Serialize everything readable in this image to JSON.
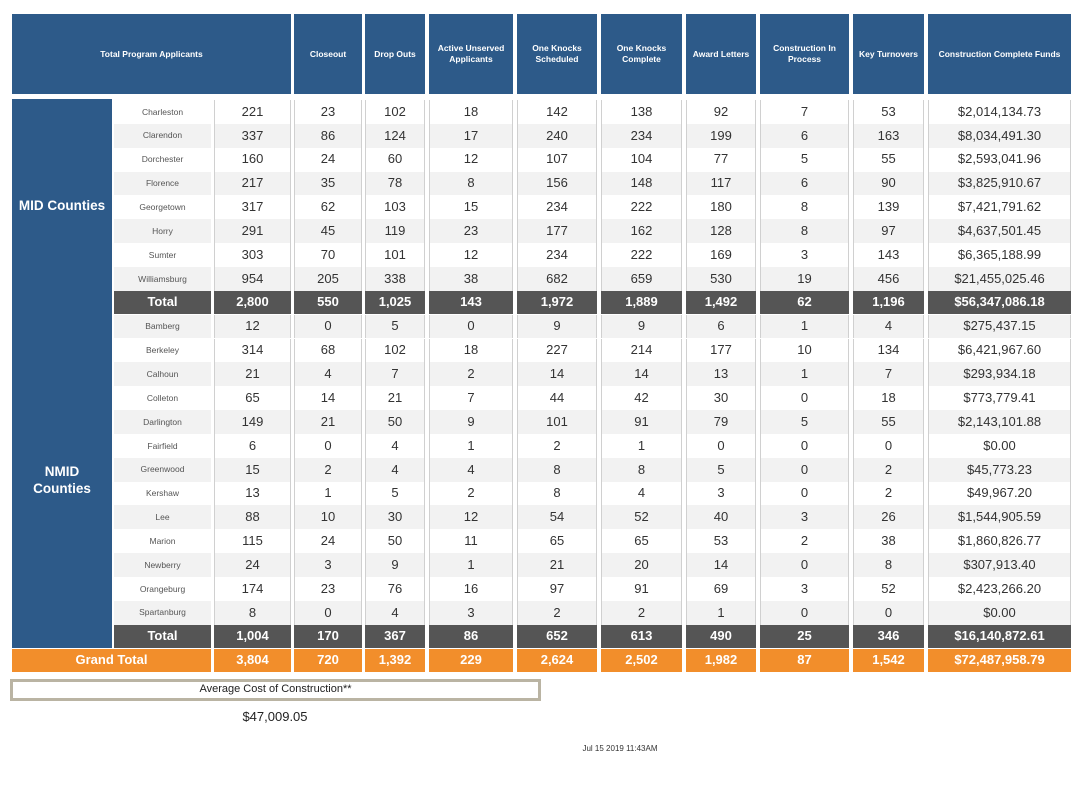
{
  "header": {
    "columns": [
      "Total Program Applicants",
      "Closeout",
      "Drop Outs",
      "Active Unserved Applicants",
      "One Knocks Scheduled",
      "One Knocks Complete",
      "Award Letters",
      "Construction In Process",
      "Key Turnovers",
      "Construction Complete Funds"
    ]
  },
  "groups": [
    {
      "label": "MID Counties",
      "rows": [
        {
          "county": "Charleston",
          "values": [
            "221",
            "23",
            "102",
            "18",
            "142",
            "138",
            "92",
            "7",
            "53",
            "$2,014,134.73"
          ]
        },
        {
          "county": "Clarendon",
          "values": [
            "337",
            "86",
            "124",
            "17",
            "240",
            "234",
            "199",
            "6",
            "163",
            "$8,034,491.30"
          ]
        },
        {
          "county": "Dorchester",
          "values": [
            "160",
            "24",
            "60",
            "12",
            "107",
            "104",
            "77",
            "5",
            "55",
            "$2,593,041.96"
          ]
        },
        {
          "county": "Florence",
          "values": [
            "217",
            "35",
            "78",
            "8",
            "156",
            "148",
            "117",
            "6",
            "90",
            "$3,825,910.67"
          ]
        },
        {
          "county": "Georgetown",
          "values": [
            "317",
            "62",
            "103",
            "15",
            "234",
            "222",
            "180",
            "8",
            "139",
            "$7,421,791.62"
          ]
        },
        {
          "county": "Horry",
          "values": [
            "291",
            "45",
            "119",
            "23",
            "177",
            "162",
            "128",
            "8",
            "97",
            "$4,637,501.45"
          ]
        },
        {
          "county": "Sumter",
          "values": [
            "303",
            "70",
            "101",
            "12",
            "234",
            "222",
            "169",
            "3",
            "143",
            "$6,365,188.99"
          ]
        },
        {
          "county": "Williamsburg",
          "values": [
            "954",
            "205",
            "338",
            "38",
            "682",
            "659",
            "530",
            "19",
            "456",
            "$21,455,025.46"
          ]
        }
      ],
      "total": {
        "label": "Total",
        "values": [
          "2,800",
          "550",
          "1,025",
          "143",
          "1,972",
          "1,889",
          "1,492",
          "62",
          "1,196",
          "$56,347,086.18"
        ]
      }
    },
    {
      "label": "NMID Counties",
      "rows": [
        {
          "county": "Bamberg",
          "values": [
            "12",
            "0",
            "5",
            "0",
            "9",
            "9",
            "6",
            "1",
            "4",
            "$275,437.15"
          ]
        },
        {
          "county": "Berkeley",
          "values": [
            "314",
            "68",
            "102",
            "18",
            "227",
            "214",
            "177",
            "10",
            "134",
            "$6,421,967.60"
          ]
        },
        {
          "county": "Calhoun",
          "values": [
            "21",
            "4",
            "7",
            "2",
            "14",
            "14",
            "13",
            "1",
            "7",
            "$293,934.18"
          ]
        },
        {
          "county": "Colleton",
          "values": [
            "65",
            "14",
            "21",
            "7",
            "44",
            "42",
            "30",
            "0",
            "18",
            "$773,779.41"
          ]
        },
        {
          "county": "Darlington",
          "values": [
            "149",
            "21",
            "50",
            "9",
            "101",
            "91",
            "79",
            "5",
            "55",
            "$2,143,101.88"
          ]
        },
        {
          "county": "Fairfield",
          "values": [
            "6",
            "0",
            "4",
            "1",
            "2",
            "1",
            "0",
            "0",
            "0",
            "$0.00"
          ]
        },
        {
          "county": "Greenwood",
          "values": [
            "15",
            "2",
            "4",
            "4",
            "8",
            "8",
            "5",
            "0",
            "2",
            "$45,773.23"
          ]
        },
        {
          "county": "Kershaw",
          "values": [
            "13",
            "1",
            "5",
            "2",
            "8",
            "4",
            "3",
            "0",
            "2",
            "$49,967.20"
          ]
        },
        {
          "county": "Lee",
          "values": [
            "88",
            "10",
            "30",
            "12",
            "54",
            "52",
            "40",
            "3",
            "26",
            "$1,544,905.59"
          ]
        },
        {
          "county": "Marion",
          "values": [
            "115",
            "24",
            "50",
            "11",
            "65",
            "65",
            "53",
            "2",
            "38",
            "$1,860,826.77"
          ]
        },
        {
          "county": "Newberry",
          "values": [
            "24",
            "3",
            "9",
            "1",
            "21",
            "20",
            "14",
            "0",
            "8",
            "$307,913.40"
          ]
        },
        {
          "county": "Orangeburg",
          "values": [
            "174",
            "23",
            "76",
            "16",
            "97",
            "91",
            "69",
            "3",
            "52",
            "$2,423,266.20"
          ]
        },
        {
          "county": "Spartanburg",
          "values": [
            "8",
            "0",
            "4",
            "3",
            "2",
            "2",
            "1",
            "0",
            "0",
            "$0.00"
          ]
        }
      ],
      "total": {
        "label": "Total",
        "values": [
          "1,004",
          "170",
          "367",
          "86",
          "652",
          "613",
          "490",
          "25",
          "346",
          "$16,140,872.61"
        ]
      }
    }
  ],
  "grand_total": {
    "label": "Grand Total",
    "values": [
      "3,804",
      "720",
      "1,392",
      "229",
      "2,624",
      "2,502",
      "1,982",
      "87",
      "1,542",
      "$72,487,958.79"
    ]
  },
  "average": {
    "label": "Average Cost of Construction**",
    "value": "$47,009.05"
  },
  "timestamp": "Jul 15 2019 11:43AM"
}
